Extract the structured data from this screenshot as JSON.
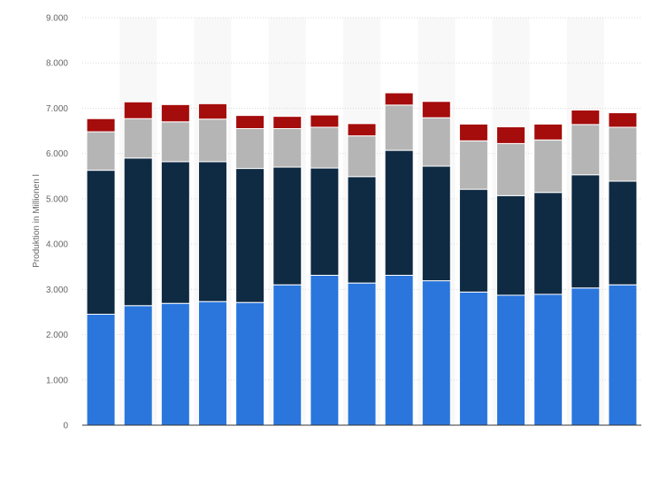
{
  "chart_data": {
    "type": "bar",
    "stacked": true,
    "title": "",
    "xlabel": "",
    "ylabel": "Produktion in Millionen l",
    "ylim": [
      0,
      9000
    ],
    "yticks": [
      "0",
      "1.000",
      "2.000",
      "3.000",
      "4.000",
      "5.000",
      "6.000",
      "7.000",
      "8.000",
      "9.000"
    ],
    "grid": true,
    "legend": "none",
    "categories": [
      "",
      "",
      "",
      "",
      "",
      "",
      "",
      "",
      "",
      "",
      "",
      "",
      "",
      "",
      ""
    ],
    "series": [
      {
        "color": "#2a76dd",
        "values": [
          2450,
          2640,
          2690,
          2730,
          2710,
          3100,
          3310,
          3140,
          3310,
          3190,
          2940,
          2870,
          2890,
          3030,
          3100
        ]
      },
      {
        "color": "#0f2a43",
        "values": [
          3180,
          3260,
          3130,
          3090,
          2960,
          2600,
          2370,
          2350,
          2760,
          2530,
          2270,
          2200,
          2250,
          2500,
          2290
        ]
      },
      {
        "color": "#b5b5b5",
        "values": [
          850,
          870,
          880,
          940,
          880,
          850,
          900,
          900,
          1000,
          1070,
          1070,
          1150,
          1160,
          1110,
          1190
        ]
      },
      {
        "color": "#a50c0c",
        "values": [
          290,
          370,
          380,
          340,
          290,
          270,
          270,
          270,
          270,
          360,
          370,
          370,
          350,
          320,
          320
        ]
      }
    ]
  }
}
